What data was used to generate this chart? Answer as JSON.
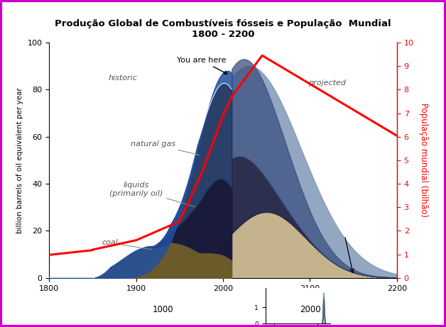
{
  "title_line1": "Produção Global de Combustíveis fósseis e População  Mundial",
  "title_line2": "1800 - 2200",
  "ylabel_left": "billion barrels of oil equivalent per year",
  "ylabel_right": "População mundial (bilhão)",
  "xlim": [
    1800,
    2200
  ],
  "ylim_left": [
    0,
    100
  ],
  "ylim_right": [
    0,
    10
  ],
  "xticks": [
    1800,
    1900,
    2000,
    2100,
    2200
  ],
  "yticks_left": [
    0,
    20,
    40,
    60,
    80,
    100
  ],
  "yticks_right": [
    0,
    1,
    2,
    3,
    4,
    5,
    6,
    7,
    8,
    9,
    10
  ],
  "border_color": "#cc00cc",
  "annotation_you_are_here": "You are here",
  "annotation_historic": "historic",
  "annotation_projected": "projected",
  "annotation_natural_gas": "natural gas",
  "annotation_liquids": "liquids\n(primarily oil)",
  "annotation_coal": "coal",
  "coal_hist_color": "#6B5A2A",
  "coal_proj_color": "#C8B48A",
  "liquids_color": "#1a1a3a",
  "natural_gas_color": "#2a3a60",
  "total_hist_top_color": "#2a4a80",
  "total_proj_color": "#8098B8",
  "population_color": "#ff0000"
}
